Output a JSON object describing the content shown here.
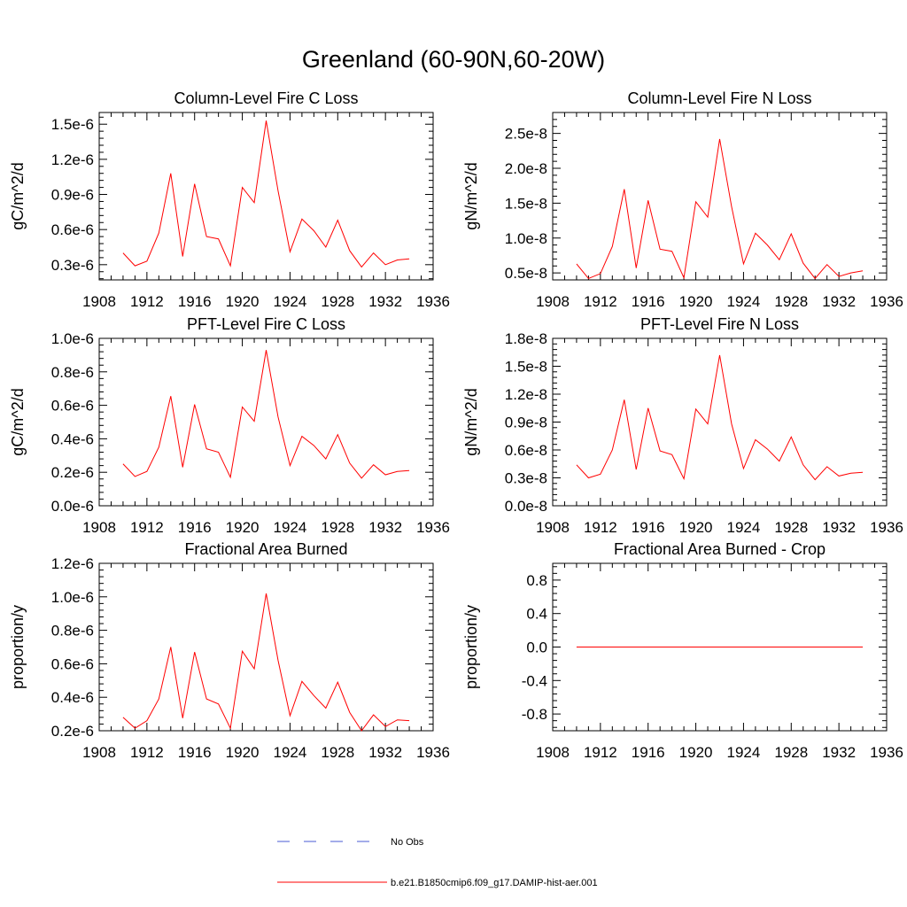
{
  "title": "Greenland (60-90N,60-20W)",
  "legend": {
    "entries": [
      {
        "label": "No Obs",
        "color": "#4a5bd6",
        "style": "dashed"
      },
      {
        "label": "b.e21.B1850cmip6.f09_g17.DAMIP-hist-aer.001",
        "color": "#ff0000",
        "style": "solid"
      }
    ]
  },
  "chart_data": [
    {
      "type": "line",
      "title": "Column-Level Fire C Loss",
      "ylabel": "gC/m^2/d",
      "xlim": [
        1908,
        1936
      ],
      "ylim": [
        1.7e-07,
        1.6e-06
      ],
      "xticks": [
        1908,
        1912,
        1916,
        1920,
        1924,
        1928,
        1932,
        1936
      ],
      "xticklabels": [
        "1908",
        "1912",
        "1916",
        "1920",
        "1924",
        "1928",
        "1932",
        "1936"
      ],
      "yticks": [
        3e-07,
        6e-07,
        9e-07,
        1.2e-06,
        1.5e-06
      ],
      "yticklabels": [
        "0.3e-6",
        "0.6e-6",
        "0.9e-6",
        "1.2e-6",
        "1.5e-6"
      ],
      "x": [
        1910,
        1911,
        1912,
        1913,
        1914,
        1915,
        1916,
        1917,
        1918,
        1919,
        1920,
        1921,
        1922,
        1923,
        1924,
        1925,
        1926,
        1927,
        1928,
        1929,
        1930,
        1931,
        1932,
        1933,
        1934
      ],
      "series": [
        {
          "color": "#ff0000",
          "values": [
            4e-07,
            2.9e-07,
            3.3e-07,
            5.7e-07,
            1.08e-06,
            3.7e-07,
            9.9e-07,
            5.4e-07,
            5.2e-07,
            2.9e-07,
            9.6e-07,
            8.3e-07,
            1.53e-06,
            9.3e-07,
            4.1e-07,
            6.9e-07,
            5.9e-07,
            4.5e-07,
            6.8e-07,
            4.2e-07,
            2.8e-07,
            4e-07,
            3e-07,
            3.4e-07,
            3.5e-07
          ]
        }
      ]
    },
    {
      "type": "line",
      "title": "Column-Level Fire N Loss",
      "ylabel": "gN/m^2/d",
      "xlim": [
        1908,
        1936
      ],
      "ylim": [
        4e-09,
        2.8e-08
      ],
      "xticks": [
        1908,
        1912,
        1916,
        1920,
        1924,
        1928,
        1932,
        1936
      ],
      "xticklabels": [
        "1908",
        "1912",
        "1916",
        "1920",
        "1924",
        "1928",
        "1932",
        "1936"
      ],
      "yticks": [
        5e-09,
        1e-08,
        1.5e-08,
        2e-08,
        2.5e-08
      ],
      "yticklabels": [
        "0.5e-8",
        "1.0e-8",
        "1.5e-8",
        "2.0e-8",
        "2.5e-8"
      ],
      "x": [
        1910,
        1911,
        1912,
        1913,
        1914,
        1915,
        1916,
        1917,
        1918,
        1919,
        1920,
        1921,
        1922,
        1923,
        1924,
        1925,
        1926,
        1927,
        1928,
        1929,
        1930,
        1931,
        1932,
        1933,
        1934
      ],
      "series": [
        {
          "color": "#ff0000",
          "values": [
            6.3e-09,
            4.2e-09,
            4.9e-09,
            8.8e-09,
            1.7e-08,
            5.7e-09,
            1.54e-08,
            8.4e-09,
            8.1e-09,
            4.3e-09,
            1.52e-08,
            1.3e-08,
            2.42e-08,
            1.45e-08,
            6.3e-09,
            1.07e-08,
            9e-09,
            6.9e-09,
            1.06e-08,
            6.4e-09,
            4.2e-09,
            6.2e-09,
            4.5e-09,
            5e-09,
            5.3e-09
          ]
        }
      ]
    },
    {
      "type": "line",
      "title": "PFT-Level Fire C Loss",
      "ylabel": "gC/m^2/d",
      "xlim": [
        1908,
        1936
      ],
      "ylim": [
        0,
        1e-06
      ],
      "xticks": [
        1908,
        1912,
        1916,
        1920,
        1924,
        1928,
        1932,
        1936
      ],
      "xticklabels": [
        "1908",
        "1912",
        "1916",
        "1920",
        "1924",
        "1928",
        "1932",
        "1936"
      ],
      "yticks": [
        0,
        2e-07,
        4e-07,
        6e-07,
        8e-07,
        1e-06
      ],
      "yticklabels": [
        "0.0e-6",
        "0.2e-6",
        "0.4e-6",
        "0.6e-6",
        "0.8e-6",
        "1.0e-6"
      ],
      "x": [
        1910,
        1911,
        1912,
        1913,
        1914,
        1915,
        1916,
        1917,
        1918,
        1919,
        1920,
        1921,
        1922,
        1923,
        1924,
        1925,
        1926,
        1927,
        1928,
        1929,
        1930,
        1931,
        1932,
        1933,
        1934
      ],
      "series": [
        {
          "color": "#ff0000",
          "values": [
            2.5e-07,
            1.75e-07,
            2.05e-07,
            3.5e-07,
            6.55e-07,
            2.3e-07,
            6.05e-07,
            3.4e-07,
            3.2e-07,
            1.7e-07,
            5.9e-07,
            5.05e-07,
            9.3e-07,
            5.3e-07,
            2.4e-07,
            4.15e-07,
            3.6e-07,
            2.8e-07,
            4.25e-07,
            2.55e-07,
            1.65e-07,
            2.45e-07,
            1.85e-07,
            2.05e-07,
            2.1e-07
          ]
        }
      ]
    },
    {
      "type": "line",
      "title": "PFT-Level Fire N Loss",
      "ylabel": "gN/m^2/d",
      "xlim": [
        1908,
        1936
      ],
      "ylim": [
        0,
        1.8e-08
      ],
      "xticks": [
        1908,
        1912,
        1916,
        1920,
        1924,
        1928,
        1932,
        1936
      ],
      "xticklabels": [
        "1908",
        "1912",
        "1916",
        "1920",
        "1924",
        "1928",
        "1932",
        "1936"
      ],
      "yticks": [
        0,
        3e-09,
        6e-09,
        9e-09,
        1.2e-08,
        1.5e-08,
        1.8e-08
      ],
      "yticklabels": [
        "0.0e-8",
        "0.3e-8",
        "0.6e-8",
        "0.9e-8",
        "1.2e-8",
        "1.5e-8",
        "1.8e-8"
      ],
      "x": [
        1910,
        1911,
        1912,
        1913,
        1914,
        1915,
        1916,
        1917,
        1918,
        1919,
        1920,
        1921,
        1922,
        1923,
        1924,
        1925,
        1926,
        1927,
        1928,
        1929,
        1930,
        1931,
        1932,
        1933,
        1934
      ],
      "series": [
        {
          "color": "#ff0000",
          "values": [
            4.4e-09,
            3e-09,
            3.4e-09,
            6e-09,
            1.14e-08,
            3.9e-09,
            1.05e-08,
            5.9e-09,
            5.5e-09,
            2.9e-09,
            1.04e-08,
            8.8e-09,
            1.62e-08,
            8.8e-09,
            4e-09,
            7.1e-09,
            6.1e-09,
            4.8e-09,
            7.4e-09,
            4.4e-09,
            2.8e-09,
            4.2e-09,
            3.2e-09,
            3.5e-09,
            3.6e-09
          ]
        }
      ]
    },
    {
      "type": "line",
      "title": "Fractional Area Burned",
      "ylabel": "proportion/y",
      "xlim": [
        1908,
        1936
      ],
      "ylim": [
        2e-07,
        1.2e-06
      ],
      "xticks": [
        1908,
        1912,
        1916,
        1920,
        1924,
        1928,
        1932,
        1936
      ],
      "xticklabels": [
        "1908",
        "1912",
        "1916",
        "1920",
        "1924",
        "1928",
        "1932",
        "1936"
      ],
      "yticks": [
        2e-07,
        4e-07,
        6e-07,
        8e-07,
        1e-06,
        1.2e-06
      ],
      "yticklabels": [
        "0.2e-6",
        "0.4e-6",
        "0.6e-6",
        "0.8e-6",
        "1.0e-6",
        "1.2e-6"
      ],
      "x": [
        1910,
        1911,
        1912,
        1913,
        1914,
        1915,
        1916,
        1917,
        1918,
        1919,
        1920,
        1921,
        1922,
        1923,
        1924,
        1925,
        1926,
        1927,
        1928,
        1929,
        1930,
        1931,
        1932,
        1933,
        1934
      ],
      "series": [
        {
          "color": "#ff0000",
          "values": [
            2.8e-07,
            2.15e-07,
            2.6e-07,
            3.9e-07,
            7e-07,
            2.75e-07,
            6.7e-07,
            3.9e-07,
            3.6e-07,
            2.15e-07,
            6.75e-07,
            5.7e-07,
            1.02e-06,
            6.2e-07,
            2.9e-07,
            4.95e-07,
            4.1e-07,
            3.35e-07,
            4.9e-07,
            3.1e-07,
            2e-07,
            2.95e-07,
            2.25e-07,
            2.65e-07,
            2.6e-07
          ]
        }
      ]
    },
    {
      "type": "line",
      "title": "Fractional Area Burned - Crop",
      "ylabel": "proportion/y",
      "xlim": [
        1908,
        1936
      ],
      "ylim": [
        -1,
        1
      ],
      "xticks": [
        1908,
        1912,
        1916,
        1920,
        1924,
        1928,
        1932,
        1936
      ],
      "xticklabels": [
        "1908",
        "1912",
        "1916",
        "1920",
        "1924",
        "1928",
        "1932",
        "1936"
      ],
      "yticks": [
        -0.8,
        -0.4,
        0,
        0.4,
        0.8
      ],
      "yticklabels": [
        "-0.8",
        "-0.4",
        "0.0",
        "0.4",
        "0.8"
      ],
      "x": [
        1910,
        1911,
        1912,
        1913,
        1914,
        1915,
        1916,
        1917,
        1918,
        1919,
        1920,
        1921,
        1922,
        1923,
        1924,
        1925,
        1926,
        1927,
        1928,
        1929,
        1930,
        1931,
        1932,
        1933,
        1934
      ],
      "series": [
        {
          "color": "#ff0000",
          "values": [
            0,
            0,
            0,
            0,
            0,
            0,
            0,
            0,
            0,
            0,
            0,
            0,
            0,
            0,
            0,
            0,
            0,
            0,
            0,
            0,
            0,
            0,
            0,
            0,
            0
          ]
        }
      ]
    }
  ]
}
